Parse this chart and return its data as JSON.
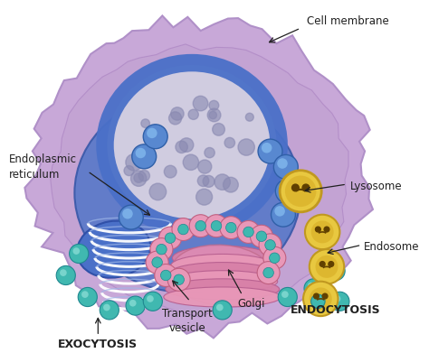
{
  "background_color": "#ffffff",
  "cell_outer_color": "#c8a8d8",
  "cell_outer_edge": "#b090c8",
  "cell_inner_color": "#d0b8e0",
  "cytoplasm_inner_color": "#c8a8d8",
  "er_blue_color": "#4a70c8",
  "er_blue_dark": "#3050a8",
  "er_white_line": "#e8f0ff",
  "nucleus_fill": "#ccc8e0",
  "nucleus_dot": "#8888b0",
  "nucleus_ring": "#4a70c8",
  "golgi_main": "#d888a8",
  "golgi_dark": "#c06888",
  "golgi_light": "#f0a8c0",
  "vesicle_blue_fill": "#5888d0",
  "vesicle_blue_edge": "#3060a8",
  "vesicle_pink_fill": "#e898b8",
  "vesicle_pink_edge": "#c06080",
  "vesicle_teal_fill": "#40b8b0",
  "vesicle_teal_edge": "#208890",
  "lyso_outer": "#e8c840",
  "lyso_edge": "#c09820",
  "lyso_inner_fill": "#d4a820",
  "lyso_face": "#604000",
  "arrow_color": "#202020",
  "text_color": "#202020",
  "label_fontsize": 8.5,
  "bold_fontsize": 9,
  "labels": {
    "cell_membrane": "Cell membrane",
    "er": "Endoplasmic\nreticulum",
    "lysosome": "Lysosome",
    "endosome": "Endosome",
    "golgi": "Golgi",
    "transport": "Transport\nvesicle",
    "exocytosis": "EXOCYTOSIS",
    "endocytosis": "ENDOCYTOSIS"
  }
}
